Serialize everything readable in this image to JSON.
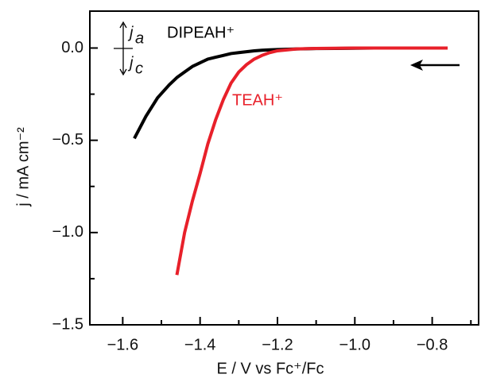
{
  "chart_data": {
    "type": "line",
    "xlabel": "E / V vs Fc⁺/Fc",
    "ylabel": "j / mA cm⁻²",
    "x": [
      -1.57,
      -1.54,
      -1.51,
      -1.48,
      -1.46,
      -1.44,
      -1.42,
      -1.4,
      -1.38,
      -1.36,
      -1.34,
      -1.32,
      -1.3,
      -1.28,
      -1.26,
      -1.24,
      -1.22,
      -1.2,
      -1.15,
      -1.1,
      -1.05,
      -1.0,
      -0.95,
      -0.9,
      -0.87,
      -0.8,
      -0.76
    ],
    "series": [
      {
        "name": "DIPEAH⁺",
        "color": "#000000",
        "values": [
          -0.49,
          -0.37,
          -0.27,
          -0.2,
          -0.16,
          -0.13,
          -0.1,
          -0.08,
          -0.06,
          -0.05,
          -0.04,
          -0.03,
          -0.025,
          -0.02,
          -0.015,
          -0.012,
          -0.01,
          -0.008,
          -0.005,
          -0.003,
          -0.002,
          -0.001,
          0,
          0,
          0,
          null,
          null
        ]
      },
      {
        "name": "TEAH⁺",
        "color": "#e8202a",
        "values": [
          null,
          null,
          null,
          null,
          -1.23,
          -1.0,
          -0.83,
          -0.68,
          -0.52,
          -0.39,
          -0.28,
          -0.19,
          -0.13,
          -0.09,
          -0.06,
          -0.04,
          -0.025,
          -0.015,
          -0.005,
          -0.002,
          -0.001,
          0,
          0,
          0,
          0,
          0,
          0
        ]
      }
    ],
    "xlim": [
      -1.685,
      -0.68
    ],
    "ylim": [
      -1.5,
      0.2
    ],
    "xticks": [
      {
        "value": -1.6,
        "label": "−1.6"
      },
      {
        "value": -1.4,
        "label": "−1.4"
      },
      {
        "value": -1.2,
        "label": "−1.2"
      },
      {
        "value": -1.0,
        "label": "−1.0"
      },
      {
        "value": -0.8,
        "label": "−0.8"
      }
    ],
    "yticks": [
      {
        "value": 0,
        "label": "0.0"
      },
      {
        "value": -0.5,
        "label": "−0.5"
      },
      {
        "value": -1.0,
        "label": "−1.0"
      },
      {
        "value": -1.5,
        "label": "−1.5"
      }
    ],
    "xminorticks": [
      -1.5,
      -1.3,
      -1.1,
      -0.9,
      -0.7
    ],
    "yminorticks": [
      -0.25,
      -0.75,
      -1.25
    ],
    "indicator": [
      {
        "text": "j",
        "sub": "a"
      },
      {
        "text": "j",
        "sub": "c"
      }
    ],
    "grid": false
  }
}
